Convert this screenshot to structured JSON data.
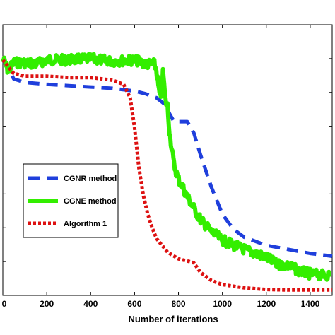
{
  "chart_data": {
    "type": "line",
    "title": "",
    "xlabel": "Number of iterations",
    "ylabel": "",
    "xlim": [
      0,
      1500
    ],
    "xticks": [
      0,
      200,
      400,
      600,
      800,
      1000,
      1200,
      1400
    ],
    "ylim": [
      0,
      1
    ],
    "yticks": [
      0.125,
      0.25,
      0.375,
      0.5,
      0.625,
      0.75,
      0.875
    ],
    "grid": false,
    "legend_position": "center-left",
    "series": [
      {
        "name": "CGNR method",
        "color": "#1f3fdc",
        "style": "dashed",
        "x": [
          0,
          50,
          100,
          200,
          300,
          400,
          500,
          600,
          650,
          700,
          740,
          760,
          780,
          800,
          820,
          840,
          870,
          900,
          950,
          1000,
          1050,
          1100,
          1200,
          1300,
          1400,
          1500
        ],
        "y": [
          0.87,
          0.8,
          0.787,
          0.78,
          0.775,
          0.77,
          0.765,
          0.755,
          0.745,
          0.73,
          0.705,
          0.67,
          0.642,
          0.642,
          0.642,
          0.642,
          0.6,
          0.52,
          0.4,
          0.3,
          0.245,
          0.215,
          0.185,
          0.17,
          0.155,
          0.145
        ]
      },
      {
        "name": "CGNE method",
        "color": "#33ee00",
        "style": "solid",
        "x": [
          0,
          25,
          50,
          100,
          150,
          200,
          300,
          400,
          500,
          600,
          650,
          690,
          700,
          710,
          720,
          730,
          740,
          750,
          760,
          780,
          800,
          850,
          900,
          950,
          1000,
          1050,
          1100,
          1150,
          1200,
          1250,
          1300,
          1350,
          1400,
          1450,
          1490
        ],
        "y": [
          0.875,
          0.83,
          0.86,
          0.86,
          0.855,
          0.87,
          0.87,
          0.875,
          0.865,
          0.87,
          0.855,
          0.855,
          0.83,
          0.76,
          0.72,
          0.83,
          0.72,
          0.7,
          0.6,
          0.48,
          0.43,
          0.35,
          0.28,
          0.235,
          0.205,
          0.185,
          0.17,
          0.155,
          0.14,
          0.115,
          0.11,
          0.09,
          0.08,
          0.075,
          0.075
        ]
      },
      {
        "name": "Algorithm 1",
        "color": "#dd1111",
        "style": "dotted",
        "x": [
          0,
          50,
          100,
          200,
          300,
          400,
          500,
          550,
          580,
          600,
          620,
          640,
          660,
          680,
          700,
          750,
          800,
          850,
          870,
          900,
          950,
          1000,
          1100,
          1200,
          1300,
          1400,
          1500
        ],
        "y": [
          0.87,
          0.82,
          0.81,
          0.81,
          0.805,
          0.805,
          0.795,
          0.78,
          0.73,
          0.62,
          0.47,
          0.37,
          0.3,
          0.25,
          0.21,
          0.16,
          0.135,
          0.125,
          0.12,
          0.085,
          0.055,
          0.04,
          0.028,
          0.022,
          0.02,
          0.02,
          0.02
        ]
      }
    ]
  }
}
